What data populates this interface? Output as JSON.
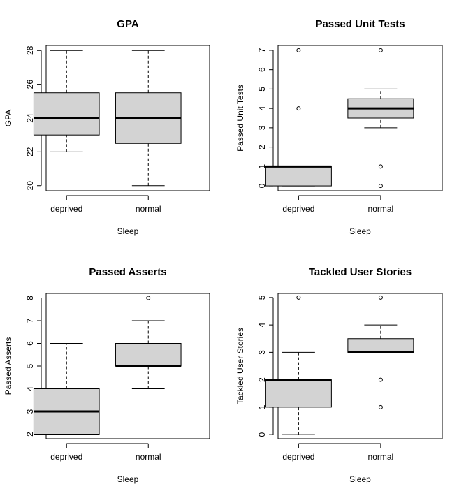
{
  "chart_data": [
    {
      "type": "boxplot",
      "title": "GPA",
      "xlabel": "Sleep",
      "ylabel": "GPA",
      "ylim": [
        19.7,
        28.3
      ],
      "yticks": [
        20,
        22,
        24,
        26,
        28
      ],
      "categories": [
        "deprived",
        "normal"
      ],
      "boxes": [
        {
          "category": "deprived",
          "min": 22,
          "q1": 23,
          "median": 24,
          "q3": 25.5,
          "max": 28,
          "outliers": []
        },
        {
          "category": "normal",
          "min": 20,
          "q1": 22.5,
          "median": 24,
          "q3": 25.5,
          "max": 28,
          "outliers": []
        }
      ]
    },
    {
      "type": "boxplot",
      "title": "Passed Unit Tests",
      "xlabel": "Sleep",
      "ylabel": "Passed Unit Tests",
      "ylim": [
        -0.25,
        7.25
      ],
      "yticks": [
        0,
        1,
        2,
        3,
        4,
        5,
        6,
        7
      ],
      "categories": [
        "deprived",
        "normal"
      ],
      "boxes": [
        {
          "category": "deprived",
          "min": 0,
          "q1": 0,
          "median": 1,
          "q3": 1,
          "max": 1,
          "outliers": [
            4,
            7
          ]
        },
        {
          "category": "normal",
          "min": 3,
          "q1": 3.5,
          "median": 4,
          "q3": 4.5,
          "max": 5,
          "outliers": [
            0,
            1,
            7
          ]
        }
      ]
    },
    {
      "type": "boxplot",
      "title": "Passed Asserts",
      "xlabel": "Sleep",
      "ylabel": "Passed Asserts",
      "ylim": [
        1.8,
        8.2
      ],
      "yticks": [
        2,
        3,
        4,
        5,
        6,
        7,
        8
      ],
      "categories": [
        "deprived",
        "normal"
      ],
      "boxes": [
        {
          "category": "deprived",
          "min": 2,
          "q1": 2,
          "median": 3,
          "q3": 4,
          "max": 6,
          "outliers": []
        },
        {
          "category": "normal",
          "min": 4,
          "q1": 5,
          "median": 5,
          "q3": 6,
          "max": 7,
          "outliers": [
            8
          ]
        }
      ]
    },
    {
      "type": "boxplot",
      "title": "Tackled User Stories",
      "xlabel": "Sleep",
      "ylabel": "Tackled User Stories",
      "ylim": [
        -0.15,
        5.15
      ],
      "yticks": [
        0,
        1,
        2,
        3,
        4,
        5
      ],
      "categories": [
        "deprived",
        "normal"
      ],
      "boxes": [
        {
          "category": "deprived",
          "min": 0,
          "q1": 1,
          "median": 2,
          "q3": 2,
          "max": 3,
          "outliers": [
            5
          ]
        },
        {
          "category": "normal",
          "min": 3,
          "q1": 3,
          "median": 3,
          "q3": 3.5,
          "max": 4,
          "outliers": [
            1,
            2,
            5
          ]
        }
      ]
    }
  ],
  "colors": {
    "box_fill": "#d3d3d3",
    "stroke": "#000000",
    "background": "#ffffff"
  }
}
